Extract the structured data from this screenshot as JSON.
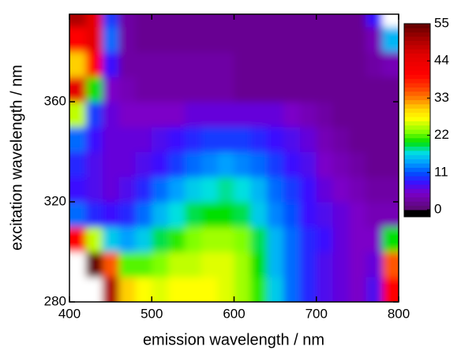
{
  "chart_data": {
    "type": "heatmap",
    "xlabel": "emission wavelength / nm",
    "ylabel": "excitation wavelength / nm",
    "x": [
      410,
      430,
      450,
      470,
      490,
      510,
      530,
      550,
      570,
      590,
      610,
      630,
      650,
      670,
      690,
      710,
      730,
      750,
      770,
      790
    ],
    "y": [
      285,
      295,
      305,
      315,
      325,
      335,
      345,
      355,
      365,
      375,
      385,
      395
    ],
    "z": [
      [
        60,
        60,
        50,
        30,
        27,
        26,
        27,
        27,
        27,
        26,
        24,
        21,
        16,
        12,
        9,
        7,
        6,
        5,
        7,
        40
      ],
      [
        60,
        55,
        35,
        22,
        22,
        23,
        25,
        25,
        26,
        26,
        24,
        20,
        15,
        12,
        9,
        7,
        6,
        5,
        6,
        35
      ],
      [
        40,
        25,
        16,
        14,
        16,
        19,
        21,
        23,
        24,
        24,
        23,
        19,
        15,
        12,
        9,
        8,
        6,
        5,
        5,
        20
      ],
      [
        12,
        9,
        8,
        9,
        12,
        15,
        17,
        19,
        20,
        20,
        19,
        16,
        13,
        11,
        8,
        7,
        6,
        5,
        4,
        4
      ],
      [
        8,
        7,
        6,
        7,
        9,
        12,
        14,
        16,
        17,
        18,
        17,
        15,
        12,
        10,
        8,
        6,
        5,
        4,
        3,
        3
      ],
      [
        9,
        7,
        6,
        6,
        7,
        8,
        10,
        12,
        13,
        14,
        13,
        12,
        10,
        8,
        7,
        5,
        4,
        3,
        2,
        2
      ],
      [
        12,
        8,
        6,
        6,
        6,
        7,
        8,
        9,
        10,
        10,
        10,
        9,
        8,
        7,
        6,
        4,
        3,
        2,
        2,
        2
      ],
      [
        25,
        10,
        6,
        5,
        5,
        5,
        5,
        6,
        6,
        6,
        6,
        6,
        6,
        5,
        4,
        3,
        2,
        2,
        2,
        2
      ],
      [
        45,
        20,
        5,
        4,
        3,
        3,
        3,
        3,
        3,
        3,
        2,
        2,
        2,
        2,
        2,
        2,
        2,
        2,
        2,
        2
      ],
      [
        30,
        40,
        8,
        3,
        3,
        3,
        3,
        3,
        3,
        3,
        2,
        2,
        2,
        2,
        2,
        2,
        2,
        2,
        3,
        4
      ],
      [
        40,
        45,
        12,
        3,
        2,
        2,
        2,
        2,
        2,
        2,
        2,
        2,
        2,
        2,
        2,
        2,
        2,
        2,
        4,
        15
      ],
      [
        50,
        45,
        10,
        3,
        2,
        2,
        2,
        2,
        2,
        2,
        2,
        2,
        2,
        2,
        2,
        2,
        2,
        2,
        8,
        60
      ]
    ],
    "xlim": [
      400,
      800
    ],
    "ylim": [
      280,
      395
    ],
    "xticks": [
      400,
      500,
      600,
      700,
      800
    ],
    "yticks": [
      280,
      320,
      360
    ],
    "clim": [
      0,
      55
    ],
    "cticks": [
      0,
      11,
      22,
      33,
      44,
      55
    ],
    "colormap": [
      {
        "value": 0,
        "color": "#5a0a6e"
      },
      {
        "value": 5,
        "color": "#7b00c8"
      },
      {
        "value": 8,
        "color": "#3a10ff"
      },
      {
        "value": 11,
        "color": "#0050ff"
      },
      {
        "value": 14,
        "color": "#00a0ff"
      },
      {
        "value": 17,
        "color": "#00e0e0"
      },
      {
        "value": 20,
        "color": "#00e000"
      },
      {
        "value": 23,
        "color": "#80ff00"
      },
      {
        "value": 27,
        "color": "#ffff00"
      },
      {
        "value": 30,
        "color": "#ffd000"
      },
      {
        "value": 33,
        "color": "#ff8000"
      },
      {
        "value": 36,
        "color": "#ff4000"
      },
      {
        "value": 40,
        "color": "#ff0000"
      },
      {
        "value": 46,
        "color": "#e00000"
      },
      {
        "value": 51,
        "color": "#a00000"
      },
      {
        "value": 55,
        "color": "#600000"
      }
    ],
    "over_color": "#ffffff",
    "under_color": "#000000"
  }
}
